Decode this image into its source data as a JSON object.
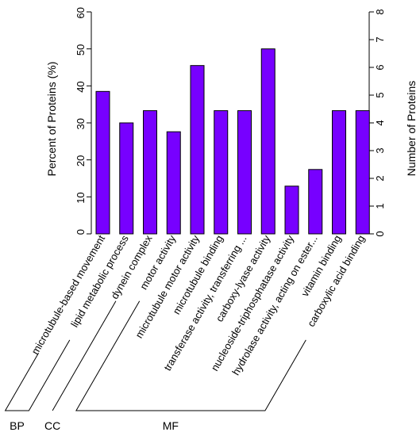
{
  "chart_data": {
    "type": "bar",
    "categories": [
      "microtubule-based movement",
      "lipid metabolic process",
      "dynein complex",
      "motor activity",
      "microtubule motor activity",
      "microtubule binding",
      "transferase activity, transferring ...",
      "carboxy-lyase activity",
      "nucleoside-triphosphatase activity",
      "hydrolase activity, acting on ester...",
      "vitamin binding",
      "carboxylic acid binding"
    ],
    "values": [
      38.5,
      30,
      33.3,
      27.6,
      45.5,
      33.3,
      33.3,
      50,
      12.9,
      17.4,
      33.3,
      33.3
    ],
    "ylabel": "Percent of Proteins (%)",
    "ylim": [
      0,
      60
    ],
    "yticks": [
      0,
      10,
      20,
      30,
      40,
      50,
      60
    ],
    "y2label": "Number of Proteins",
    "y2lim": [
      0,
      8
    ],
    "y2ticks": [
      0,
      1,
      2,
      3,
      4,
      5,
      6,
      7,
      8
    ],
    "bar_color": "#7700ff",
    "grid": false,
    "groups": [
      {
        "label": "BP",
        "start": 0,
        "end": 1
      },
      {
        "label": "CC",
        "start": 2,
        "end": 2
      },
      {
        "label": "MF",
        "start": 3,
        "end": 11
      }
    ]
  }
}
